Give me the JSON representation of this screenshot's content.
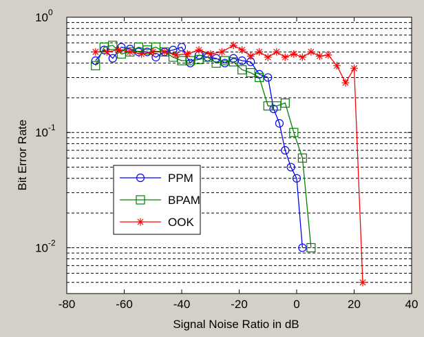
{
  "chart_data": {
    "type": "line",
    "xlabel": "Signal Noise Ratio in dB",
    "ylabel": "Bit Error Rate",
    "xlim": [
      -80,
      40
    ],
    "ylim": [
      0.004,
      1
    ],
    "yscale": "log",
    "grid": "y-dashed",
    "legend_position": "lower-left",
    "x_ticks": [
      "-80",
      "-60",
      "-40",
      "-20",
      "0",
      "20",
      "40"
    ],
    "y_ticks": [
      {
        "value": 1,
        "base": "10",
        "exp": "0"
      },
      {
        "value": 0.1,
        "base": "10",
        "exp": "-1"
      },
      {
        "value": 0.01,
        "base": "10",
        "exp": "-2"
      }
    ],
    "series": [
      {
        "name": "PPM",
        "color": "#0000ff",
        "marker": "circle",
        "x": [
          -70,
          -67,
          -64,
          -61,
          -58,
          -55,
          -52,
          -49,
          -46,
          -43,
          -40,
          -37,
          -34,
          -31,
          -28,
          -25,
          -22,
          -19,
          -16,
          -13,
          -10,
          -8,
          -6,
          -4,
          -2,
          0,
          2
        ],
        "y": [
          0.42,
          0.52,
          0.44,
          0.55,
          0.53,
          0.5,
          0.5,
          0.45,
          0.5,
          0.52,
          0.55,
          0.4,
          0.47,
          0.45,
          0.44,
          0.4,
          0.44,
          0.42,
          0.41,
          0.32,
          0.3,
          0.16,
          0.12,
          0.07,
          0.05,
          0.04,
          0.01
        ]
      },
      {
        "name": "BPAM",
        "color": "#008000",
        "marker": "square",
        "x": [
          -70,
          -67,
          -64,
          -61,
          -58,
          -55,
          -52,
          -49,
          -46,
          -43,
          -40,
          -37,
          -34,
          -31,
          -28,
          -25,
          -22,
          -19,
          -16,
          -13,
          -10,
          -7,
          -4,
          -1,
          2,
          5
        ],
        "y": [
          0.38,
          0.55,
          0.57,
          0.48,
          0.5,
          0.55,
          0.52,
          0.55,
          0.5,
          0.45,
          0.42,
          0.42,
          0.43,
          0.45,
          0.4,
          0.42,
          0.41,
          0.35,
          0.33,
          0.3,
          0.17,
          0.17,
          0.18,
          0.1,
          0.06,
          0.01
        ]
      },
      {
        "name": "OOK",
        "color": "#ff0000",
        "marker": "star",
        "x": [
          -70,
          -66,
          -62,
          -58,
          -54,
          -50,
          -46,
          -42,
          -38,
          -34,
          -30,
          -26,
          -22,
          -19,
          -16,
          -13,
          -10,
          -7,
          -4,
          -1,
          2,
          5,
          8,
          11,
          14,
          17,
          20,
          23
        ],
        "y": [
          0.5,
          0.5,
          0.52,
          0.5,
          0.48,
          0.5,
          0.5,
          0.47,
          0.48,
          0.52,
          0.48,
          0.5,
          0.57,
          0.52,
          0.46,
          0.5,
          0.45,
          0.5,
          0.45,
          0.48,
          0.45,
          0.5,
          0.46,
          0.47,
          0.38,
          0.27,
          0.36,
          0.005
        ]
      }
    ]
  }
}
